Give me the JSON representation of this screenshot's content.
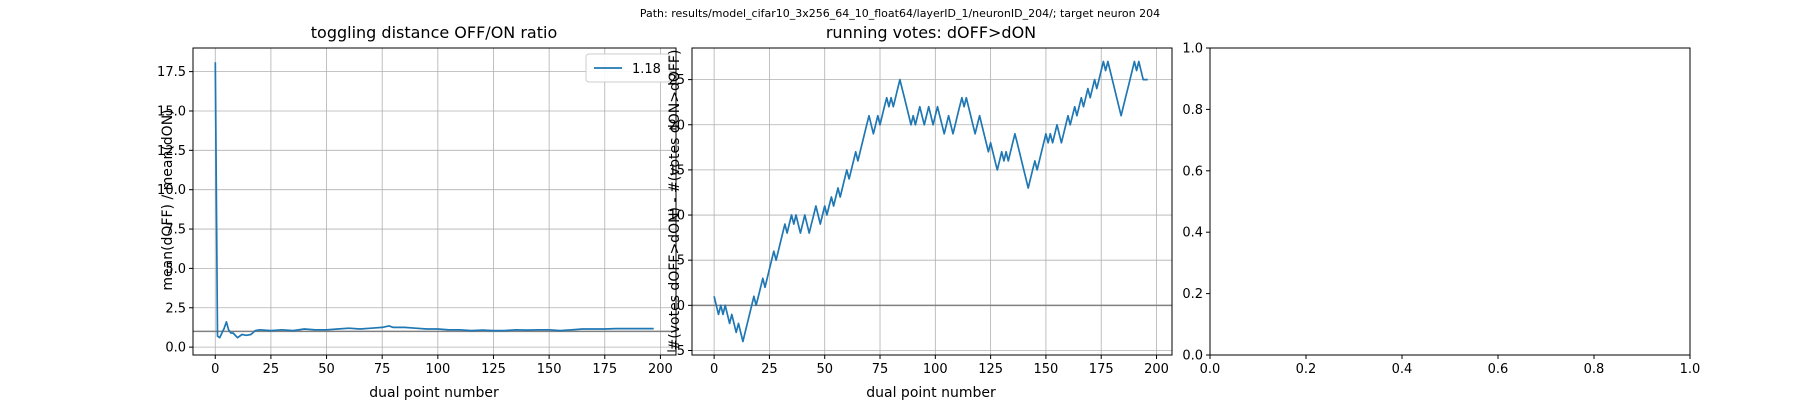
{
  "figure": {
    "suptitle": "Path: results/model_cifar10_3x256_64_10_float64/layerID_1/neuronID_204/; target neuron 204"
  },
  "colors": {
    "series": "#1f77b4",
    "reference_line": "#808080",
    "grid": "#b0b0b0",
    "axes": "#000000"
  },
  "chart_data": [
    {
      "type": "line",
      "title": "toggling distance OFF/ON ratio",
      "xlabel": "dual point number",
      "ylabel": "mean(dOFF) / mean(dON)",
      "xlim": [
        -10,
        207
      ],
      "ylim": [
        -0.5,
        19.0
      ],
      "xticks": [
        0,
        25,
        50,
        75,
        100,
        125,
        150,
        175,
        200
      ],
      "yticks": [
        0.0,
        2.5,
        5.0,
        7.5,
        10.0,
        12.5,
        15.0,
        17.5
      ],
      "ytick_labels": [
        "0.0",
        "2.5",
        "5.0",
        "7.5",
        "10.0",
        "12.5",
        "15.0",
        "17.5"
      ],
      "grid": true,
      "legend": {
        "position": "top-right",
        "entries": [
          "1.18"
        ]
      },
      "hline": 1.0,
      "series": [
        {
          "name": "1.18",
          "x": [
            0,
            1,
            2,
            3,
            4,
            5,
            6,
            7,
            8,
            10,
            12,
            14,
            16,
            18,
            20,
            25,
            30,
            35,
            40,
            45,
            50,
            55,
            60,
            65,
            70,
            75,
            78,
            80,
            85,
            90,
            95,
            100,
            105,
            110,
            115,
            120,
            125,
            130,
            135,
            140,
            145,
            150,
            155,
            160,
            165,
            170,
            175,
            180,
            185,
            190,
            197
          ],
          "y": [
            18.1,
            0.7,
            0.6,
            0.9,
            1.2,
            1.6,
            1.1,
            0.9,
            0.9,
            0.6,
            0.8,
            0.75,
            0.8,
            1.05,
            1.1,
            1.05,
            1.1,
            1.05,
            1.15,
            1.1,
            1.1,
            1.15,
            1.2,
            1.15,
            1.2,
            1.25,
            1.35,
            1.25,
            1.25,
            1.2,
            1.15,
            1.15,
            1.1,
            1.1,
            1.05,
            1.08,
            1.05,
            1.05,
            1.1,
            1.08,
            1.1,
            1.1,
            1.05,
            1.1,
            1.15,
            1.15,
            1.15,
            1.18,
            1.18,
            1.18,
            1.18
          ]
        }
      ]
    },
    {
      "type": "line",
      "title": "running votes: dOFF>dON",
      "xlabel": "dual point number",
      "ylabel": "#(votes dOFF>dON) - #(votes dON>dOFF)",
      "xlim": [
        -10,
        207
      ],
      "ylim": [
        -5.5,
        28.5
      ],
      "xticks": [
        0,
        25,
        50,
        75,
        100,
        125,
        150,
        175,
        200
      ],
      "yticks": [
        -5,
        0,
        5,
        10,
        15,
        20,
        25
      ],
      "ytick_labels": [
        "−5",
        "0",
        "5",
        "10",
        "15",
        "20",
        "25"
      ],
      "grid": true,
      "hline": 0,
      "series": [
        {
          "x": [
            0,
            2,
            3,
            4,
            5,
            6,
            7,
            8,
            9,
            10,
            11,
            12,
            13,
            14,
            15,
            16,
            17,
            18,
            19,
            20,
            21,
            22,
            23,
            24,
            25,
            26,
            27,
            28,
            29,
            30,
            31,
            32,
            33,
            34,
            35,
            36,
            37,
            38,
            39,
            40,
            41,
            42,
            43,
            44,
            45,
            46,
            47,
            48,
            49,
            50,
            51,
            52,
            53,
            54,
            55,
            56,
            57,
            58,
            59,
            60,
            61,
            62,
            63,
            64,
            65,
            66,
            67,
            68,
            69,
            70,
            71,
            72,
            73,
            74,
            75,
            76,
            77,
            78,
            79,
            80,
            81,
            82,
            83,
            84,
            85,
            86,
            87,
            88,
            89,
            90,
            91,
            92,
            93,
            94,
            95,
            96,
            97,
            98,
            99,
            100,
            101,
            102,
            103,
            104,
            105,
            106,
            107,
            108,
            109,
            110,
            111,
            112,
            113,
            114,
            115,
            116,
            117,
            118,
            119,
            120,
            121,
            122,
            123,
            124,
            125,
            126,
            127,
            128,
            129,
            130,
            131,
            132,
            133,
            134,
            135,
            136,
            137,
            138,
            139,
            140,
            141,
            142,
            143,
            144,
            145,
            146,
            147,
            148,
            149,
            150,
            151,
            152,
            153,
            154,
            155,
            156,
            157,
            158,
            159,
            160,
            161,
            162,
            163,
            164,
            165,
            166,
            167,
            168,
            169,
            170,
            171,
            172,
            173,
            174,
            175,
            176,
            177,
            178,
            179,
            180,
            181,
            182,
            183,
            184,
            185,
            186,
            187,
            188,
            189,
            190,
            191,
            192,
            193,
            194,
            195,
            196
          ],
          "y": [
            1,
            -1,
            0,
            -1,
            0,
            -1,
            -2,
            -1,
            -2,
            -3,
            -2,
            -3,
            -4,
            -3,
            -2,
            -1,
            0,
            1,
            0,
            1,
            2,
            3,
            2,
            3,
            4,
            5,
            6,
            5,
            6,
            7,
            8,
            9,
            8,
            9,
            10,
            9,
            10,
            9,
            8,
            9,
            10,
            9,
            8,
            9,
            10,
            11,
            10,
            9,
            10,
            11,
            10,
            11,
            12,
            11,
            12,
            13,
            12,
            13,
            14,
            15,
            14,
            15,
            16,
            17,
            16,
            17,
            18,
            19,
            20,
            21,
            20,
            19,
            20,
            21,
            20,
            21,
            22,
            23,
            22,
            23,
            22,
            23,
            24,
            25,
            24,
            23,
            22,
            21,
            20,
            21,
            20,
            21,
            22,
            21,
            20,
            21,
            22,
            21,
            20,
            21,
            22,
            21,
            20,
            19,
            20,
            21,
            20,
            19,
            20,
            21,
            22,
            23,
            22,
            23,
            22,
            21,
            20,
            19,
            20,
            21,
            20,
            19,
            18,
            17,
            18,
            17,
            16,
            15,
            16,
            17,
            16,
            17,
            16,
            17,
            18,
            19,
            18,
            17,
            16,
            15,
            14,
            13,
            14,
            15,
            16,
            15,
            16,
            17,
            18,
            19,
            18,
            19,
            18,
            19,
            20,
            19,
            18,
            19,
            20,
            21,
            20,
            21,
            22,
            21,
            22,
            23,
            22,
            23,
            24,
            23,
            24,
            25,
            24,
            25,
            26,
            27,
            26,
            27,
            26,
            25,
            24,
            23,
            22,
            21,
            22,
            23,
            24,
            25,
            26,
            27,
            26,
            27,
            26,
            25,
            25,
            25
          ]
        }
      ]
    },
    {
      "type": "line",
      "title": "",
      "xlabel": "",
      "ylabel": "",
      "xlim": [
        0.0,
        1.0
      ],
      "ylim": [
        0.0,
        1.0
      ],
      "xticks": [
        0.0,
        0.2,
        0.4,
        0.6,
        0.8,
        1.0
      ],
      "yticks": [
        0.0,
        0.2,
        0.4,
        0.6,
        0.8,
        1.0
      ],
      "xtick_labels": [
        "0.0",
        "0.2",
        "0.4",
        "0.6",
        "0.8",
        "1.0"
      ],
      "ytick_labels": [
        "0.0",
        "0.2",
        "0.4",
        "0.6",
        "0.8",
        "1.0"
      ],
      "grid": false,
      "series": []
    }
  ]
}
